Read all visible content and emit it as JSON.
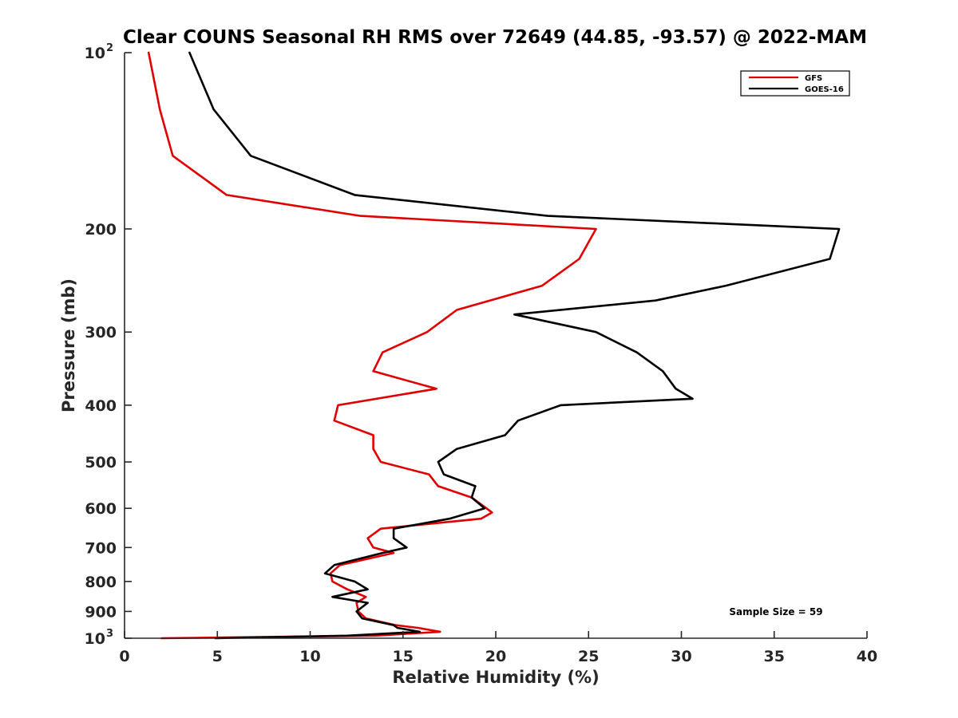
{
  "chart_data": {
    "type": "line",
    "title": "Clear COUNS Seasonal RH RMS over 72649 (44.85, -93.57) @ 2022-MAM",
    "xlabel": "Relative Humidity (%)",
    "ylabel": "Pressure (mb)",
    "xlim": [
      0,
      40
    ],
    "ylim": [
      100,
      1000
    ],
    "y_scale": "log-reversed",
    "x_ticks": [
      0,
      5,
      10,
      15,
      20,
      25,
      30,
      35,
      40
    ],
    "x_tick_labels": [
      "0",
      "5",
      "10",
      "15",
      "20",
      "25",
      "30",
      "35",
      "40"
    ],
    "y_ticks": [
      {
        "value": 100,
        "base": "10",
        "exp": "2"
      },
      {
        "value": 200,
        "label": "200"
      },
      {
        "value": 300,
        "label": "300"
      },
      {
        "value": 400,
        "label": "400"
      },
      {
        "value": 500,
        "label": "500"
      },
      {
        "value": 600,
        "label": "600"
      },
      {
        "value": 700,
        "label": "700"
      },
      {
        "value": 800,
        "label": "800"
      },
      {
        "value": 900,
        "label": "900"
      },
      {
        "value": 1000,
        "base": "10",
        "exp": "3"
      }
    ],
    "legend_position": "top-right",
    "annotation": "Sample Size = 59",
    "series": [
      {
        "name": "GFS",
        "color": "#e00000",
        "points": [
          [
            1.3,
            100
          ],
          [
            1.9,
            125
          ],
          [
            2.6,
            150
          ],
          [
            5.5,
            175
          ],
          [
            12.7,
            190
          ],
          [
            25.4,
            200
          ],
          [
            24.5,
            225
          ],
          [
            22.5,
            250
          ],
          [
            17.9,
            275
          ],
          [
            16.3,
            300
          ],
          [
            13.9,
            325
          ],
          [
            13.4,
            350
          ],
          [
            16.8,
            375
          ],
          [
            11.5,
            400
          ],
          [
            11.3,
            425
          ],
          [
            13.4,
            450
          ],
          [
            13.4,
            475
          ],
          [
            13.8,
            500
          ],
          [
            16.4,
            525
          ],
          [
            16.9,
            550
          ],
          [
            18.7,
            575
          ],
          [
            19.5,
            600
          ],
          [
            19.8,
            610
          ],
          [
            19.2,
            625
          ],
          [
            13.8,
            650
          ],
          [
            13.1,
            675
          ],
          [
            13.4,
            700
          ],
          [
            14.5,
            715
          ],
          [
            11.6,
            750
          ],
          [
            11.1,
            775
          ],
          [
            11.2,
            800
          ],
          [
            12.0,
            825
          ],
          [
            13.0,
            850
          ],
          [
            12.5,
            870
          ],
          [
            12.6,
            900
          ],
          [
            13.0,
            925
          ],
          [
            14.6,
            950
          ],
          [
            15.8,
            960
          ],
          [
            17.0,
            975
          ],
          [
            13.5,
            990
          ],
          [
            2.0,
            1000
          ]
        ]
      },
      {
        "name": "GOES-16",
        "color": "#000000",
        "points": [
          [
            3.5,
            100
          ],
          [
            4.8,
            125
          ],
          [
            6.8,
            150
          ],
          [
            12.4,
            175
          ],
          [
            22.8,
            190
          ],
          [
            38.5,
            200
          ],
          [
            38.0,
            225
          ],
          [
            32.4,
            250
          ],
          [
            28.6,
            265
          ],
          [
            21.0,
            280
          ],
          [
            25.4,
            300
          ],
          [
            27.6,
            325
          ],
          [
            29.0,
            350
          ],
          [
            29.7,
            375
          ],
          [
            30.6,
            390
          ],
          [
            23.5,
            400
          ],
          [
            21.2,
            425
          ],
          [
            20.5,
            450
          ],
          [
            17.9,
            475
          ],
          [
            16.9,
            500
          ],
          [
            17.2,
            525
          ],
          [
            18.9,
            550
          ],
          [
            18.7,
            575
          ],
          [
            19.4,
            600
          ],
          [
            17.5,
            625
          ],
          [
            14.5,
            650
          ],
          [
            14.5,
            675
          ],
          [
            15.2,
            700
          ],
          [
            13.9,
            715
          ],
          [
            11.3,
            750
          ],
          [
            10.8,
            775
          ],
          [
            12.4,
            800
          ],
          [
            13.1,
            825
          ],
          [
            11.2,
            850
          ],
          [
            13.1,
            870
          ],
          [
            12.5,
            900
          ],
          [
            12.8,
            925
          ],
          [
            14.5,
            950
          ],
          [
            14.7,
            960
          ],
          [
            15.9,
            975
          ],
          [
            12.0,
            990
          ],
          [
            4.9,
            1000
          ]
        ]
      }
    ]
  }
}
